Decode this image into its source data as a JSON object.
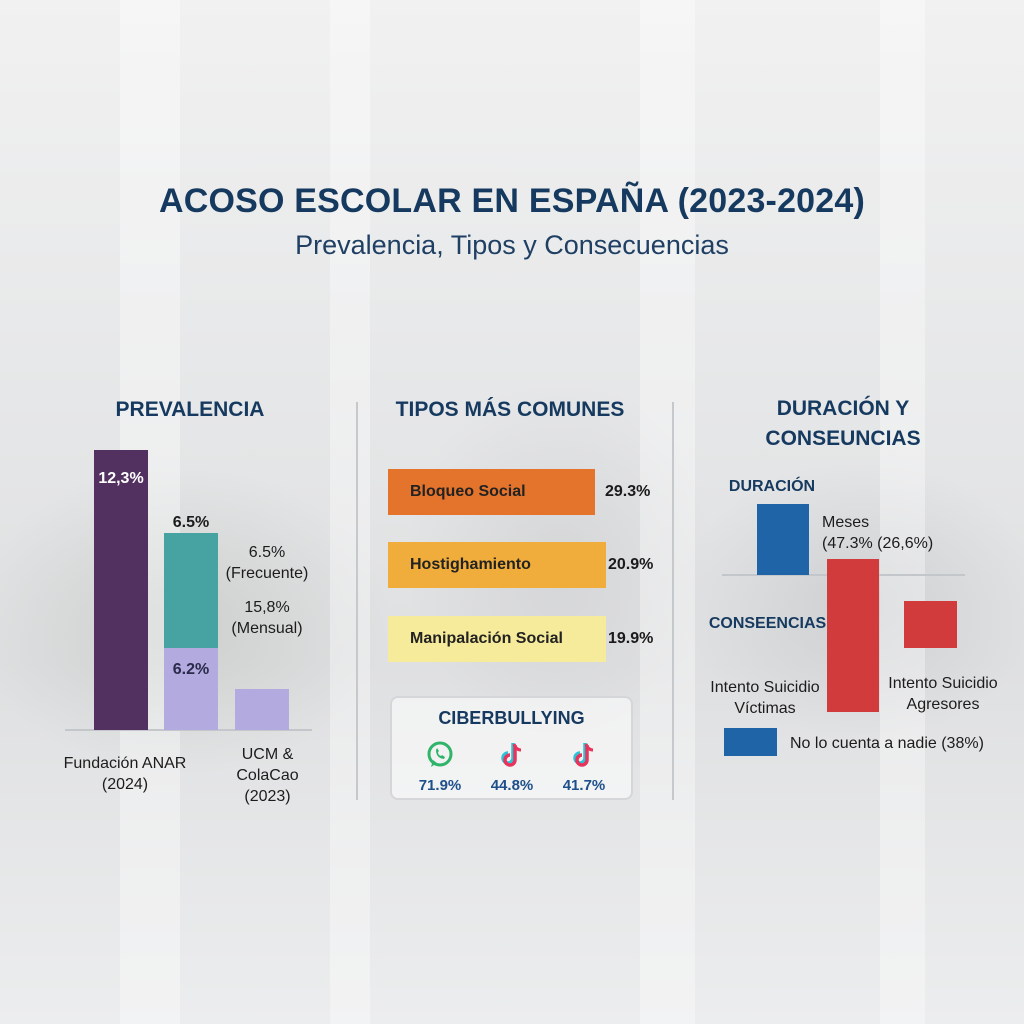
{
  "header": {
    "title": "ACOSO ESCOLAR EN ESPAÑA (2023-2024)",
    "subtitle": "Prevalencia, Tipos y Consecuencias"
  },
  "chart_data": [
    {
      "type": "bar",
      "title": "PREVALENCIA",
      "categories": [
        "Fundación ANAR (2024)",
        "UCM & ColaCao (2023)"
      ],
      "source_labels": [
        "Fundación ANAR\n(2024)",
        "UCM &\nColaCao\n(2023)"
      ],
      "bars": [
        {
          "label": "12,3%",
          "value": 12.3,
          "color": "#52305f"
        },
        {
          "label": "6.5%",
          "value": 6.5,
          "color": "#46a3a1"
        },
        {
          "label": "6.2%",
          "value": 6.2,
          "color": "#b3abdf"
        },
        {
          "label": "",
          "value": 1.8,
          "color": "#b3abdf"
        }
      ],
      "annotations": [
        "6.5%\n(Frecuente)",
        "15,8%\n(Mensual)"
      ]
    },
    {
      "type": "bar",
      "orientation": "horizontal",
      "title": "TIPOS MÁS COMUNES",
      "categories": [
        "Bloqueo Social",
        "Hostighamiento",
        "Manipalación Social"
      ],
      "values": [
        29.3,
        20.9,
        19.9
      ],
      "value_labels": [
        "29.3%",
        "20.9%",
        "19.9%"
      ],
      "colors": [
        "#e4732b",
        "#f0ad3b",
        "#f6eb9a"
      ],
      "xlim": [
        0,
        30
      ]
    },
    {
      "type": "bar",
      "title": "CIBERBULLYING",
      "categories": [
        "whatsapp-icon",
        "tiktok-icon",
        "tiktok-icon"
      ],
      "values": [
        71.9,
        44.8,
        41.7
      ],
      "value_labels": [
        "71.9%",
        "44.8%",
        "41.7%"
      ]
    },
    {
      "type": "bar",
      "title": "DURACIÓN Y CONSEUNCIAS",
      "duration_label": "DURACIÓN",
      "consequences_label": "CONSEENCIAS",
      "bars": [
        {
          "name": "duration",
          "value": 47.3,
          "color": "#2064a8"
        },
        {
          "name": "victims",
          "value": 100,
          "color": "#d23b3c"
        },
        {
          "name": "aggressors",
          "value": 35,
          "color": "#d23b3c"
        }
      ],
      "meses_label": "Meses\n(47.3% (26,6%)",
      "victims_label": "Intento Suicidio\nVíctimas",
      "aggressors_label": "Intento Suicidio\nAgresores",
      "legend": {
        "color": "#2064a8",
        "text": "No lo cuenta a nadie (38%)"
      }
    }
  ]
}
